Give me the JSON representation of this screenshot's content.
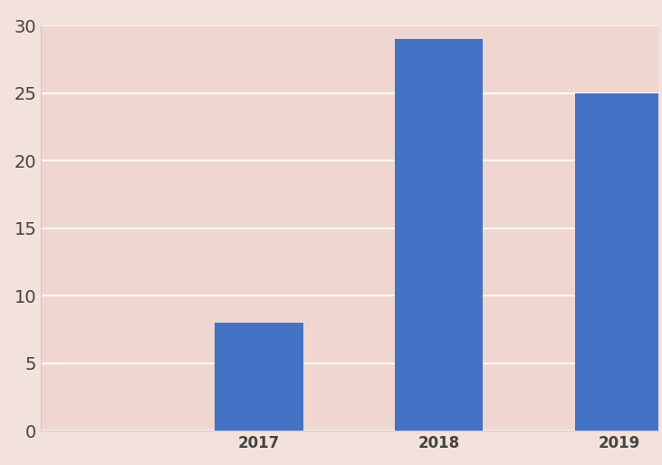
{
  "chart_data": {
    "type": "bar",
    "categories": [
      "2017",
      "2018",
      "2019"
    ],
    "values": [
      8,
      29,
      25
    ],
    "color": "#4472c4",
    "ylim": [
      0,
      30
    ],
    "yticks": [
      0,
      5,
      10,
      15,
      20,
      25,
      30
    ],
    "grid": true
  }
}
